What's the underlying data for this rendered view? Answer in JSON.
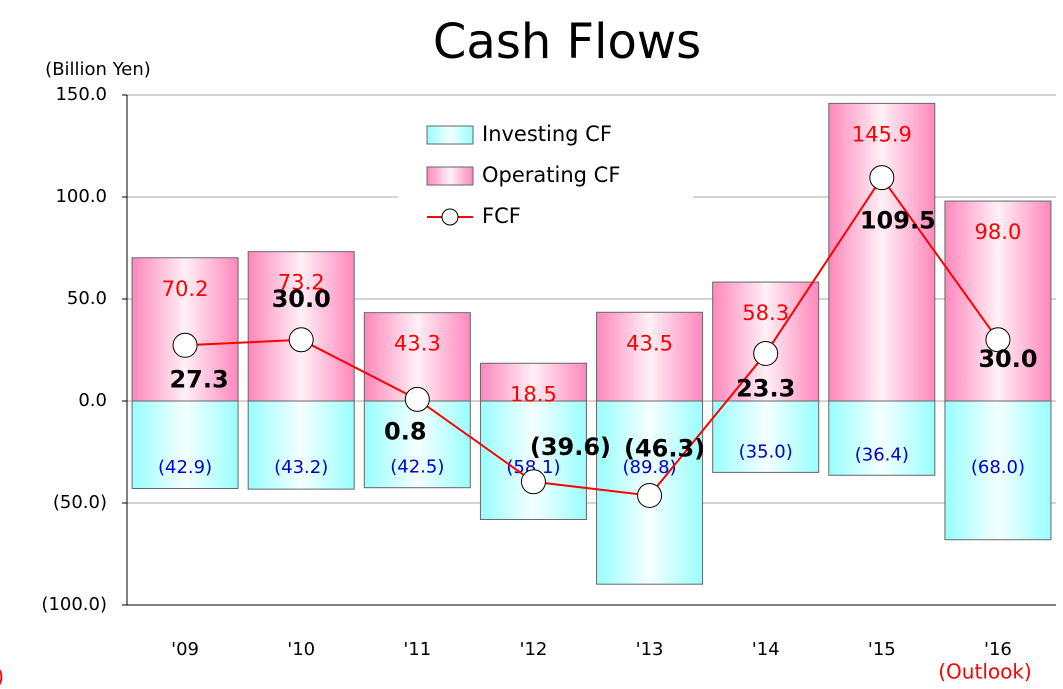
{
  "chart_data": {
    "type": "bar",
    "title": "Cash Flows",
    "y_axis_label": "(Billion Yen)",
    "annotations": [
      "(Outlook)",
      ")"
    ],
    "categories": [
      "'09",
      "'10",
      "'11",
      "'12",
      "'13",
      "'14",
      "'15",
      "'16"
    ],
    "ylim": [
      -100,
      150
    ],
    "yticks": [
      {
        "value": -100,
        "label": "(100.0)"
      },
      {
        "value": -50,
        "label": "(50.0)"
      },
      {
        "value": 0,
        "label": "0.0"
      },
      {
        "value": 50,
        "label": "50.0"
      },
      {
        "value": 100,
        "label": "100.0"
      },
      {
        "value": 150,
        "label": "150.0"
      }
    ],
    "grid": true,
    "legend": "top-center",
    "series": [
      {
        "name": "Investing CF",
        "type": "bar",
        "color": "#99ffff",
        "values": [
          -42.9,
          -43.2,
          -42.5,
          -58.1,
          -89.8,
          -35.0,
          -36.4,
          -68.0
        ],
        "value_labels": [
          "(42.9)",
          "(43.2)",
          "(42.5)",
          "(58.1)",
          "(89.8)",
          "(35.0)",
          "(36.4)",
          "(68.0)"
        ]
      },
      {
        "name": "Operating CF",
        "type": "bar",
        "color": "#ff99cc",
        "values": [
          70.2,
          73.2,
          43.3,
          18.5,
          43.5,
          58.3,
          145.9,
          98.0
        ],
        "value_labels": [
          "70.2",
          "73.2",
          "43.3",
          "18.5",
          "43.5",
          "58.3",
          "145.9",
          "98.0"
        ]
      },
      {
        "name": "FCF",
        "type": "line",
        "color": "#ff0000",
        "values": [
          27.3,
          30.0,
          0.8,
          -39.6,
          -46.3,
          23.3,
          109.5,
          30.0
        ],
        "value_labels": [
          "27.3",
          "30.0",
          "0.8",
          "(39.6)",
          "(46.3)",
          "23.3",
          "109.5",
          "30.0"
        ]
      }
    ]
  }
}
